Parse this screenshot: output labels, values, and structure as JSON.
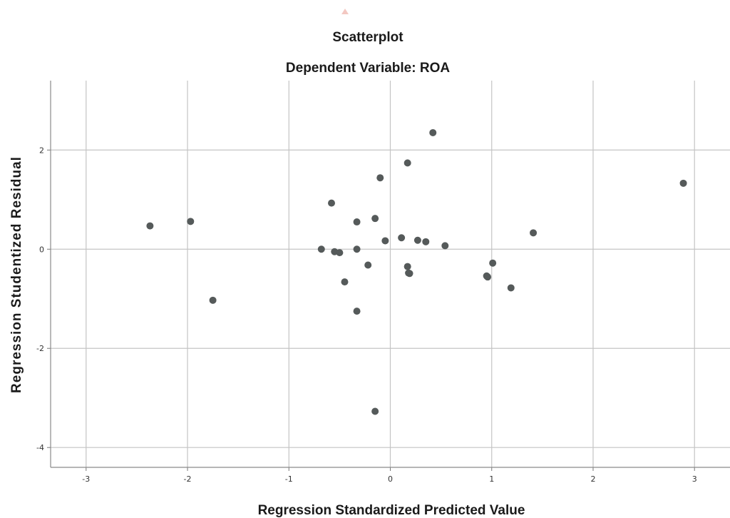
{
  "chart_data": {
    "type": "scatter",
    "title": "Scatterplot",
    "subtitle": "Dependent Variable: ROA",
    "xlabel": "Regression Standardized Predicted Value",
    "ylabel": "Regression Studentized Residual",
    "xlim": [
      -3.35,
      3.35
    ],
    "ylim": [
      -4.4,
      3.4
    ],
    "xticks": [
      -3,
      -2,
      -1,
      0,
      1,
      2,
      3
    ],
    "yticks": [
      -4,
      -2,
      0,
      2
    ],
    "xtick_labels": [
      "-3",
      "-2",
      "-1",
      "0",
      "1",
      "2",
      "3"
    ],
    "ytick_labels": [
      "-4",
      "-2",
      "0",
      "2"
    ],
    "grid": true,
    "point_color": "#555a5a",
    "grid_color": "#c4c4c4",
    "points": [
      {
        "x": -2.37,
        "y": 0.47
      },
      {
        "x": -1.97,
        "y": 0.56
      },
      {
        "x": -1.75,
        "y": -1.03
      },
      {
        "x": -0.68,
        "y": 0.0
      },
      {
        "x": -0.58,
        "y": 0.93
      },
      {
        "x": -0.55,
        "y": -0.05
      },
      {
        "x": -0.5,
        "y": -0.07
      },
      {
        "x": -0.45,
        "y": -0.66
      },
      {
        "x": -0.33,
        "y": 0.55
      },
      {
        "x": -0.33,
        "y": 0.0
      },
      {
        "x": -0.33,
        "y": -1.25
      },
      {
        "x": -0.22,
        "y": -0.32
      },
      {
        "x": -0.15,
        "y": 0.62
      },
      {
        "x": -0.15,
        "y": -3.27
      },
      {
        "x": -0.1,
        "y": 1.44
      },
      {
        "x": -0.05,
        "y": 0.17
      },
      {
        "x": 0.11,
        "y": 0.23
      },
      {
        "x": 0.17,
        "y": 1.74
      },
      {
        "x": 0.17,
        "y": -0.35
      },
      {
        "x": 0.18,
        "y": -0.48
      },
      {
        "x": 0.19,
        "y": -0.49
      },
      {
        "x": 0.27,
        "y": 0.18
      },
      {
        "x": 0.35,
        "y": 0.15
      },
      {
        "x": 0.42,
        "y": 2.35
      },
      {
        "x": 0.54,
        "y": 0.07
      },
      {
        "x": 0.95,
        "y": -0.54
      },
      {
        "x": 0.96,
        "y": -0.56
      },
      {
        "x": 1.01,
        "y": -0.28
      },
      {
        "x": 1.19,
        "y": -0.78
      },
      {
        "x": 1.41,
        "y": 0.33
      },
      {
        "x": 2.89,
        "y": 1.33
      }
    ]
  }
}
